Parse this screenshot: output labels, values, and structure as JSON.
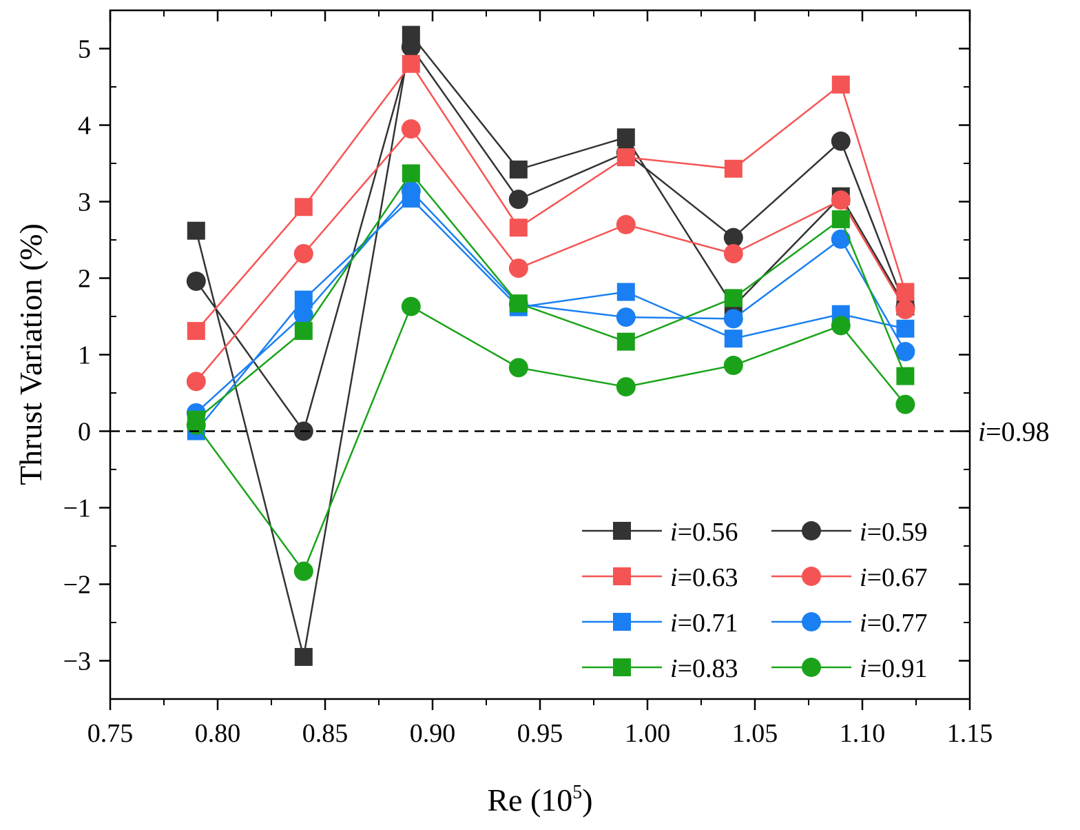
{
  "chart_data": {
    "type": "line",
    "xlabel": "Re (10",
    "xlabel_sup": "5",
    "xlabel_close": ")",
    "ylabel": "Thrust Variation (%)",
    "xlim": [
      0.75,
      1.15
    ],
    "ylim": [
      -3.5,
      5.5
    ],
    "x_ticks": [
      0.75,
      0.8,
      0.85,
      0.9,
      0.95,
      1.0,
      1.05,
      1.1,
      1.15
    ],
    "x_tick_labels": [
      "0.75",
      "0.80",
      "0.85",
      "0.90",
      "0.95",
      "1.00",
      "1.05",
      "1.10",
      "1.15"
    ],
    "y_ticks": [
      -3,
      -2,
      -1,
      0,
      1,
      2,
      3,
      4,
      5
    ],
    "y_tick_labels": [
      "−3",
      "−2",
      "−1",
      "0",
      "1",
      "2",
      "3",
      "4",
      "5"
    ],
    "grid": false,
    "legend_position": "bottom-right",
    "reference_line": {
      "y": 0,
      "style": "dashed",
      "label_italic": "i",
      "label_rest": "=0.98"
    },
    "x": [
      0.79,
      0.84,
      0.89,
      0.94,
      0.99,
      1.04,
      1.09,
      1.12
    ],
    "series": [
      {
        "name": "i=0.56",
        "label_italic": "i",
        "label_rest": "=0.56",
        "marker": "square",
        "color": "#333333",
        "values": [
          2.62,
          -2.95,
          5.18,
          3.42,
          3.84,
          1.63,
          3.07,
          1.63
        ]
      },
      {
        "name": "i=0.59",
        "label_italic": "i",
        "label_rest": "=0.59",
        "marker": "circle",
        "color": "#333333",
        "values": [
          1.96,
          0.0,
          5.02,
          3.03,
          3.64,
          2.53,
          3.79,
          1.62
        ]
      },
      {
        "name": "i=0.63",
        "label_italic": "i",
        "label_rest": "=0.63",
        "marker": "square",
        "color": "#f55454",
        "values": [
          1.31,
          2.93,
          4.8,
          2.66,
          3.58,
          3.43,
          4.53,
          1.82
        ]
      },
      {
        "name": "i=0.67",
        "label_italic": "i",
        "label_rest": "=0.67",
        "marker": "circle",
        "color": "#f55454",
        "values": [
          0.65,
          2.32,
          3.95,
          2.13,
          2.7,
          2.32,
          3.02,
          1.59
        ]
      },
      {
        "name": "i=0.71",
        "label_italic": "i",
        "label_rest": "=0.71",
        "marker": "square",
        "color": "#1a7ff2",
        "values": [
          0.0,
          1.72,
          3.04,
          1.62,
          1.82,
          1.21,
          1.53,
          1.34
        ]
      },
      {
        "name": "i=0.77",
        "label_italic": "i",
        "label_rest": "=0.77",
        "marker": "circle",
        "color": "#1a7ff2",
        "values": [
          0.24,
          1.52,
          3.14,
          1.66,
          1.49,
          1.47,
          2.51,
          1.04
        ]
      },
      {
        "name": "i=0.83",
        "label_italic": "i",
        "label_rest": "=0.83",
        "marker": "square",
        "color": "#1aa31a",
        "values": [
          0.15,
          1.31,
          3.37,
          1.67,
          1.17,
          1.74,
          2.77,
          0.72
        ]
      },
      {
        "name": "i=0.91",
        "label_italic": "i",
        "label_rest": "=0.91",
        "marker": "circle",
        "color": "#1aa31a",
        "values": [
          0.08,
          -1.83,
          1.63,
          0.83,
          0.58,
          0.86,
          1.38,
          0.35
        ]
      }
    ]
  }
}
